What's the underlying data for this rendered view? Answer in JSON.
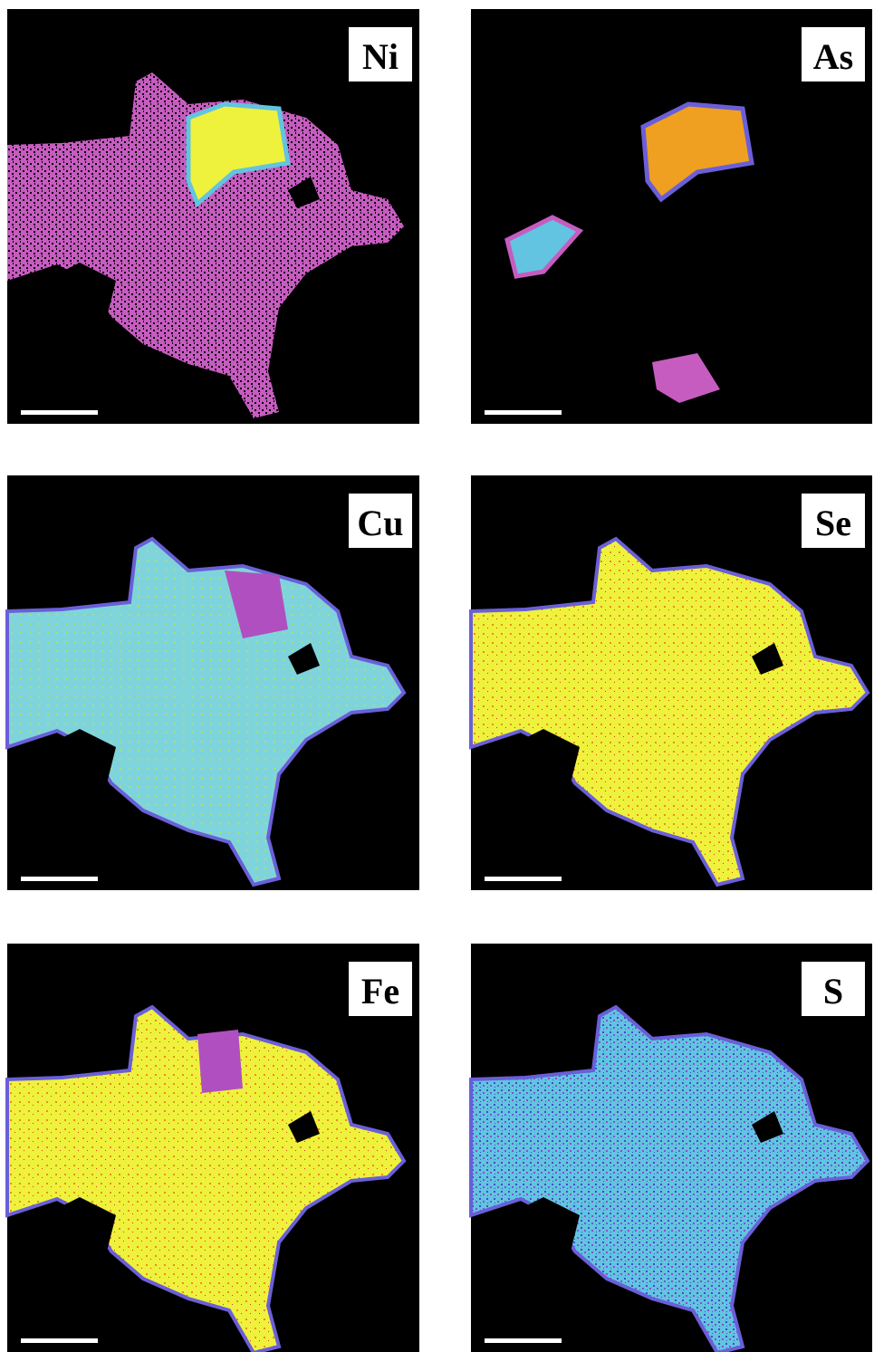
{
  "panels": [
    {
      "label": "Ni"
    },
    {
      "label": "As"
    },
    {
      "label": "Cu"
    },
    {
      "label": "Se"
    },
    {
      "label": "Fe"
    },
    {
      "label": "S"
    }
  ]
}
